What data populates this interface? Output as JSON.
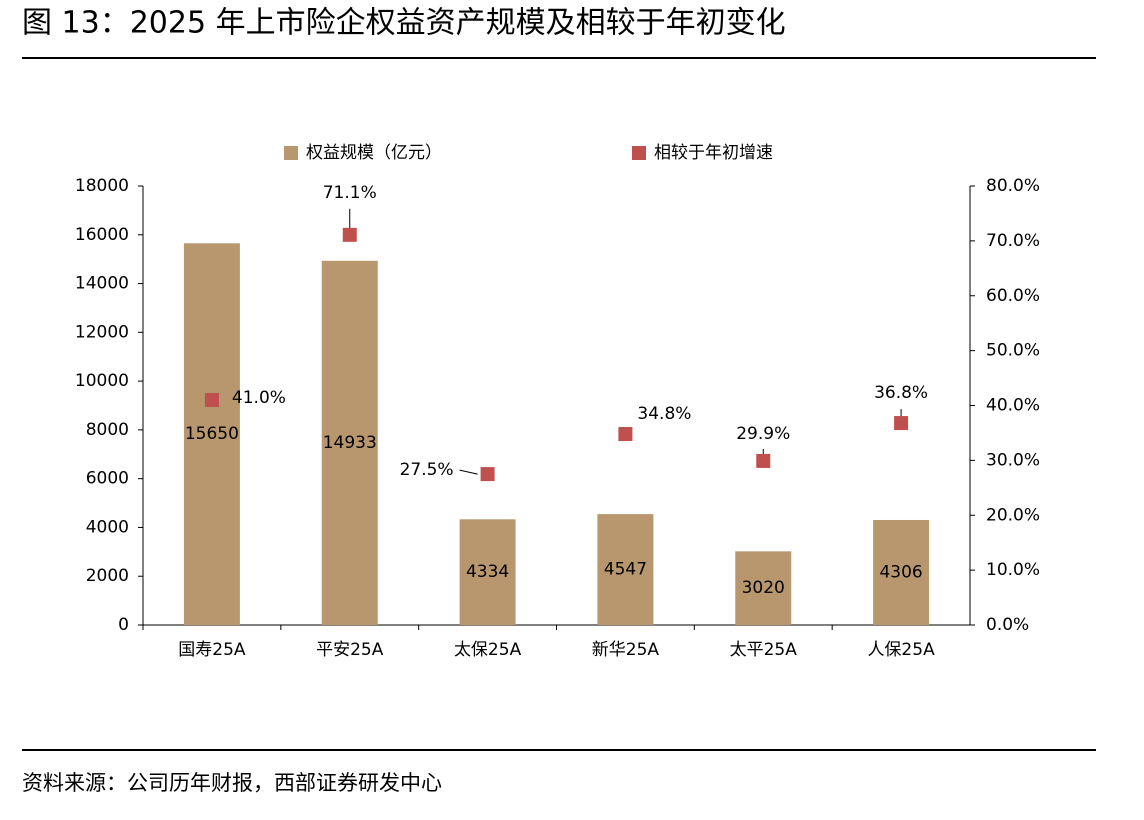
{
  "title": "图 13：2025 年上市险企权益资产规模及相较于年初变化",
  "source": "资料来源：公司历年财报，西部证券研发中心",
  "chart_data": {
    "type": "bar",
    "categories": [
      "国寿25A",
      "平安25A",
      "太保25A",
      "新华25A",
      "太平25A",
      "人保25A"
    ],
    "series": [
      {
        "name": "权益规模（亿元）",
        "color": "#b8976f",
        "type": "bar",
        "values": [
          15650,
          14933,
          4334,
          4547,
          3020,
          4306
        ]
      },
      {
        "name": "相较于年初增速",
        "color": "#c0504d",
        "type": "scatter",
        "axis": "y2",
        "values": [
          41.0,
          71.1,
          27.5,
          34.8,
          29.9,
          36.8
        ],
        "value_labels": [
          "41.0%",
          "71.1%",
          "27.5%",
          "34.8%",
          "29.9%",
          "36.8%"
        ]
      }
    ],
    "ylim": [
      0,
      18000
    ],
    "yticks": [
      0,
      2000,
      4000,
      6000,
      8000,
      10000,
      12000,
      14000,
      16000,
      18000
    ],
    "y2lim": [
      0,
      80
    ],
    "y2ticks": [
      {
        "value": 0,
        "label": "0.0%"
      },
      {
        "value": 10,
        "label": "10.0%"
      },
      {
        "value": 20,
        "label": "20.0%"
      },
      {
        "value": 30,
        "label": "30.0%"
      },
      {
        "value": 40,
        "label": "40.0%"
      },
      {
        "value": 50,
        "label": "50.0%"
      },
      {
        "value": 60,
        "label": "60.0%"
      },
      {
        "value": 70,
        "label": "70.0%"
      },
      {
        "value": 80,
        "label": "80.0%"
      }
    ],
    "legend": "top",
    "grid": false
  }
}
